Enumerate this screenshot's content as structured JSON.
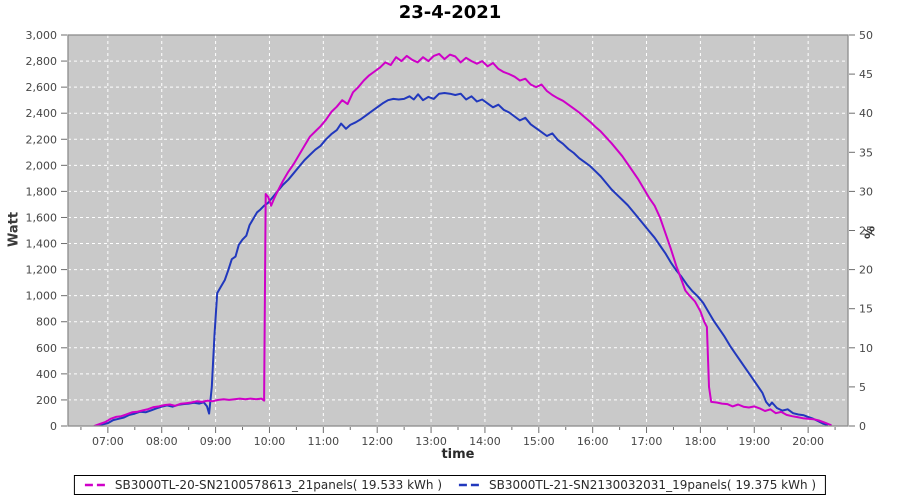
{
  "title": "23-4-2021",
  "colors": {
    "plot_background": "#c9c9c9",
    "grid": "#ffffff",
    "plot_border": "#8c8c8c",
    "tick_text": "#474747",
    "axis_title_text": "#3a3a3a",
    "series_magenta": "#cf00c8",
    "series_blue": "#2138bd",
    "legend_border": "#000000"
  },
  "axes": {
    "y_left": {
      "label": "Watt",
      "tick_values": [
        0,
        200,
        400,
        600,
        800,
        1000,
        1200,
        1400,
        1600,
        1800,
        2000,
        2200,
        2400,
        2600,
        2800,
        3000
      ],
      "tick_labels": [
        "0",
        "200",
        "400",
        "600",
        "800",
        "1,000",
        "1,200",
        "1,400",
        "1,600",
        "1,800",
        "2,000",
        "2,200",
        "2,400",
        "2,600",
        "2,800",
        "3,000"
      ]
    },
    "y_right": {
      "label": "%",
      "tick_values": [
        0,
        5,
        10,
        15,
        20,
        25,
        30,
        35,
        40,
        45,
        50
      ],
      "tick_labels": [
        "0",
        "5",
        "10",
        "15",
        "20",
        "25",
        "30",
        "35",
        "40",
        "45",
        "50"
      ]
    },
    "x": {
      "label": "time",
      "tick_hours": [
        7,
        8,
        9,
        10,
        11,
        12,
        13,
        14,
        15,
        16,
        17,
        18,
        19,
        20
      ],
      "tick_labels": [
        "07:00",
        "08:00",
        "09:00",
        "10:00",
        "11:00",
        "12:00",
        "13:00",
        "14:00",
        "15:00",
        "16:00",
        "17:00",
        "18:00",
        "19:00",
        "20:00"
      ]
    }
  },
  "chart_data": {
    "type": "line",
    "title": "23-4-2021",
    "xlabel": "time",
    "ylabel_left": "Watt",
    "ylabel_right": "%",
    "x_range_hours": [
      6.26,
      20.74
    ],
    "ylim_left": [
      0,
      3000
    ],
    "ylim_right": [
      0,
      50
    ],
    "grid": true,
    "legend_position": "bottom",
    "series": [
      {
        "label": "SB3000TL-20-SN2100578613_21panels( 19.533 kWh )",
        "color": "#cf00c8",
        "axis": "left",
        "points": [
          [
            6.75,
            0
          ],
          [
            6.85,
            15
          ],
          [
            6.95,
            30
          ],
          [
            7.05,
            55
          ],
          [
            7.15,
            70
          ],
          [
            7.25,
            75
          ],
          [
            7.35,
            90
          ],
          [
            7.45,
            105
          ],
          [
            7.55,
            110
          ],
          [
            7.65,
            120
          ],
          [
            7.75,
            130
          ],
          [
            7.85,
            145
          ],
          [
            7.95,
            150
          ],
          [
            8.05,
            160
          ],
          [
            8.15,
            165
          ],
          [
            8.25,
            155
          ],
          [
            8.35,
            170
          ],
          [
            8.45,
            175
          ],
          [
            8.55,
            180
          ],
          [
            8.65,
            190
          ],
          [
            8.75,
            185
          ],
          [
            8.85,
            195
          ],
          [
            8.95,
            190
          ],
          [
            9.05,
            200
          ],
          [
            9.15,
            205
          ],
          [
            9.25,
            200
          ],
          [
            9.35,
            205
          ],
          [
            9.45,
            210
          ],
          [
            9.55,
            205
          ],
          [
            9.65,
            210
          ],
          [
            9.75,
            205
          ],
          [
            9.85,
            210
          ],
          [
            9.9,
            195
          ],
          [
            9.93,
            1780
          ],
          [
            9.98,
            1755
          ],
          [
            10.03,
            1690
          ],
          [
            10.08,
            1740
          ],
          [
            10.15,
            1800
          ],
          [
            10.25,
            1880
          ],
          [
            10.35,
            1950
          ],
          [
            10.45,
            2010
          ],
          [
            10.55,
            2080
          ],
          [
            10.65,
            2150
          ],
          [
            10.75,
            2220
          ],
          [
            10.85,
            2260
          ],
          [
            10.95,
            2300
          ],
          [
            11.05,
            2350
          ],
          [
            11.15,
            2410
          ],
          [
            11.25,
            2450
          ],
          [
            11.35,
            2500
          ],
          [
            11.45,
            2470
          ],
          [
            11.55,
            2560
          ],
          [
            11.65,
            2600
          ],
          [
            11.75,
            2650
          ],
          [
            11.85,
            2690
          ],
          [
            11.95,
            2720
          ],
          [
            12.05,
            2750
          ],
          [
            12.15,
            2790
          ],
          [
            12.25,
            2770
          ],
          [
            12.35,
            2830
          ],
          [
            12.45,
            2800
          ],
          [
            12.55,
            2840
          ],
          [
            12.65,
            2810
          ],
          [
            12.75,
            2790
          ],
          [
            12.85,
            2830
          ],
          [
            12.95,
            2800
          ],
          [
            13.05,
            2840
          ],
          [
            13.15,
            2855
          ],
          [
            13.25,
            2815
          ],
          [
            13.35,
            2850
          ],
          [
            13.45,
            2835
          ],
          [
            13.55,
            2790
          ],
          [
            13.65,
            2825
          ],
          [
            13.75,
            2800
          ],
          [
            13.85,
            2780
          ],
          [
            13.95,
            2800
          ],
          [
            14.05,
            2760
          ],
          [
            14.15,
            2785
          ],
          [
            14.25,
            2740
          ],
          [
            14.35,
            2715
          ],
          [
            14.45,
            2700
          ],
          [
            14.55,
            2680
          ],
          [
            14.65,
            2650
          ],
          [
            14.75,
            2665
          ],
          [
            14.85,
            2620
          ],
          [
            14.95,
            2600
          ],
          [
            15.05,
            2620
          ],
          [
            15.15,
            2570
          ],
          [
            15.25,
            2540
          ],
          [
            15.35,
            2515
          ],
          [
            15.45,
            2495
          ],
          [
            15.55,
            2465
          ],
          [
            15.65,
            2435
          ],
          [
            15.75,
            2405
          ],
          [
            15.85,
            2370
          ],
          [
            15.95,
            2335
          ],
          [
            16.05,
            2295
          ],
          [
            16.15,
            2260
          ],
          [
            16.25,
            2215
          ],
          [
            16.35,
            2170
          ],
          [
            16.45,
            2120
          ],
          [
            16.55,
            2070
          ],
          [
            16.65,
            2010
          ],
          [
            16.75,
            1950
          ],
          [
            16.85,
            1890
          ],
          [
            16.95,
            1820
          ],
          [
            17.05,
            1750
          ],
          [
            17.15,
            1690
          ],
          [
            17.25,
            1600
          ],
          [
            17.35,
            1480
          ],
          [
            17.45,
            1360
          ],
          [
            17.55,
            1230
          ],
          [
            17.65,
            1120
          ],
          [
            17.72,
            1040
          ],
          [
            17.8,
            1000
          ],
          [
            17.9,
            955
          ],
          [
            18.0,
            880
          ],
          [
            18.07,
            800
          ],
          [
            18.12,
            760
          ],
          [
            18.16,
            300
          ],
          [
            18.2,
            185
          ],
          [
            18.3,
            180
          ],
          [
            18.4,
            172
          ],
          [
            18.5,
            168
          ],
          [
            18.6,
            150
          ],
          [
            18.7,
            165
          ],
          [
            18.8,
            148
          ],
          [
            18.9,
            142
          ],
          [
            19.0,
            150
          ],
          [
            19.1,
            135
          ],
          [
            19.2,
            115
          ],
          [
            19.3,
            128
          ],
          [
            19.4,
            98
          ],
          [
            19.5,
            108
          ],
          [
            19.6,
            85
          ],
          [
            19.7,
            75
          ],
          [
            19.8,
            68
          ],
          [
            19.9,
            60
          ],
          [
            20.0,
            55
          ],
          [
            20.1,
            52
          ],
          [
            20.2,
            42
          ],
          [
            20.3,
            28
          ],
          [
            20.42,
            8
          ]
        ]
      },
      {
        "label": "SB3000TL-21-SN2130032031_19panels( 19.375 kWh )",
        "color": "#2138bd",
        "axis": "left",
        "points": [
          [
            6.8,
            0
          ],
          [
            6.9,
            12
          ],
          [
            7.0,
            22
          ],
          [
            7.1,
            45
          ],
          [
            7.2,
            55
          ],
          [
            7.3,
            65
          ],
          [
            7.4,
            85
          ],
          [
            7.5,
            95
          ],
          [
            7.6,
            110
          ],
          [
            7.7,
            105
          ],
          [
            7.8,
            120
          ],
          [
            7.9,
            135
          ],
          [
            8.0,
            148
          ],
          [
            8.1,
            158
          ],
          [
            8.2,
            148
          ],
          [
            8.3,
            162
          ],
          [
            8.4,
            168
          ],
          [
            8.5,
            172
          ],
          [
            8.6,
            178
          ],
          [
            8.7,
            172
          ],
          [
            8.78,
            182
          ],
          [
            8.84,
            150
          ],
          [
            8.88,
            95
          ],
          [
            8.93,
            300
          ],
          [
            8.98,
            700
          ],
          [
            9.03,
            1020
          ],
          [
            9.1,
            1070
          ],
          [
            9.17,
            1120
          ],
          [
            9.23,
            1190
          ],
          [
            9.3,
            1280
          ],
          [
            9.37,
            1300
          ],
          [
            9.43,
            1390
          ],
          [
            9.5,
            1430
          ],
          [
            9.57,
            1460
          ],
          [
            9.63,
            1540
          ],
          [
            9.7,
            1590
          ],
          [
            9.77,
            1640
          ],
          [
            9.83,
            1660
          ],
          [
            9.9,
            1690
          ],
          [
            9.97,
            1710
          ],
          [
            10.05,
            1750
          ],
          [
            10.15,
            1800
          ],
          [
            10.25,
            1850
          ],
          [
            10.35,
            1890
          ],
          [
            10.45,
            1940
          ],
          [
            10.55,
            1990
          ],
          [
            10.65,
            2040
          ],
          [
            10.75,
            2080
          ],
          [
            10.85,
            2120
          ],
          [
            10.95,
            2150
          ],
          [
            11.05,
            2200
          ],
          [
            11.15,
            2240
          ],
          [
            11.25,
            2270
          ],
          [
            11.33,
            2320
          ],
          [
            11.42,
            2280
          ],
          [
            11.5,
            2310
          ],
          [
            11.6,
            2330
          ],
          [
            11.7,
            2355
          ],
          [
            11.8,
            2385
          ],
          [
            11.9,
            2415
          ],
          [
            12.0,
            2445
          ],
          [
            12.1,
            2475
          ],
          [
            12.2,
            2500
          ],
          [
            12.3,
            2510
          ],
          [
            12.4,
            2505
          ],
          [
            12.5,
            2510
          ],
          [
            12.6,
            2530
          ],
          [
            12.68,
            2505
          ],
          [
            12.76,
            2545
          ],
          [
            12.85,
            2500
          ],
          [
            12.95,
            2525
          ],
          [
            13.05,
            2510
          ],
          [
            13.15,
            2550
          ],
          [
            13.25,
            2555
          ],
          [
            13.35,
            2550
          ],
          [
            13.45,
            2540
          ],
          [
            13.55,
            2550
          ],
          [
            13.65,
            2505
          ],
          [
            13.75,
            2530
          ],
          [
            13.85,
            2490
          ],
          [
            13.95,
            2505
          ],
          [
            14.05,
            2475
          ],
          [
            14.15,
            2445
          ],
          [
            14.25,
            2465
          ],
          [
            14.35,
            2425
          ],
          [
            14.45,
            2405
          ],
          [
            14.55,
            2375
          ],
          [
            14.65,
            2345
          ],
          [
            14.75,
            2365
          ],
          [
            14.85,
            2315
          ],
          [
            14.95,
            2285
          ],
          [
            15.05,
            2255
          ],
          [
            15.15,
            2225
          ],
          [
            15.25,
            2245
          ],
          [
            15.35,
            2195
          ],
          [
            15.45,
            2165
          ],
          [
            15.55,
            2125
          ],
          [
            15.65,
            2095
          ],
          [
            15.75,
            2055
          ],
          [
            15.85,
            2025
          ],
          [
            15.95,
            1995
          ],
          [
            16.05,
            1955
          ],
          [
            16.15,
            1915
          ],
          [
            16.25,
            1865
          ],
          [
            16.35,
            1815
          ],
          [
            16.45,
            1775
          ],
          [
            16.55,
            1735
          ],
          [
            16.65,
            1695
          ],
          [
            16.75,
            1645
          ],
          [
            16.85,
            1595
          ],
          [
            16.95,
            1545
          ],
          [
            17.05,
            1495
          ],
          [
            17.15,
            1445
          ],
          [
            17.25,
            1385
          ],
          [
            17.35,
            1325
          ],
          [
            17.45,
            1255
          ],
          [
            17.55,
            1195
          ],
          [
            17.65,
            1145
          ],
          [
            17.75,
            1085
          ],
          [
            17.85,
            1035
          ],
          [
            17.95,
            995
          ],
          [
            18.05,
            945
          ],
          [
            18.15,
            875
          ],
          [
            18.25,
            805
          ],
          [
            18.35,
            745
          ],
          [
            18.45,
            685
          ],
          [
            18.55,
            615
          ],
          [
            18.65,
            555
          ],
          [
            18.75,
            495
          ],
          [
            18.85,
            435
          ],
          [
            18.95,
            375
          ],
          [
            19.05,
            315
          ],
          [
            19.15,
            255
          ],
          [
            19.22,
            185
          ],
          [
            19.28,
            155
          ],
          [
            19.33,
            180
          ],
          [
            19.42,
            138
          ],
          [
            19.52,
            118
          ],
          [
            19.62,
            128
          ],
          [
            19.72,
            98
          ],
          [
            19.82,
            88
          ],
          [
            19.92,
            82
          ],
          [
            20.0,
            70
          ],
          [
            20.08,
            58
          ],
          [
            20.18,
            38
          ],
          [
            20.28,
            18
          ],
          [
            20.35,
            8
          ]
        ]
      }
    ]
  }
}
